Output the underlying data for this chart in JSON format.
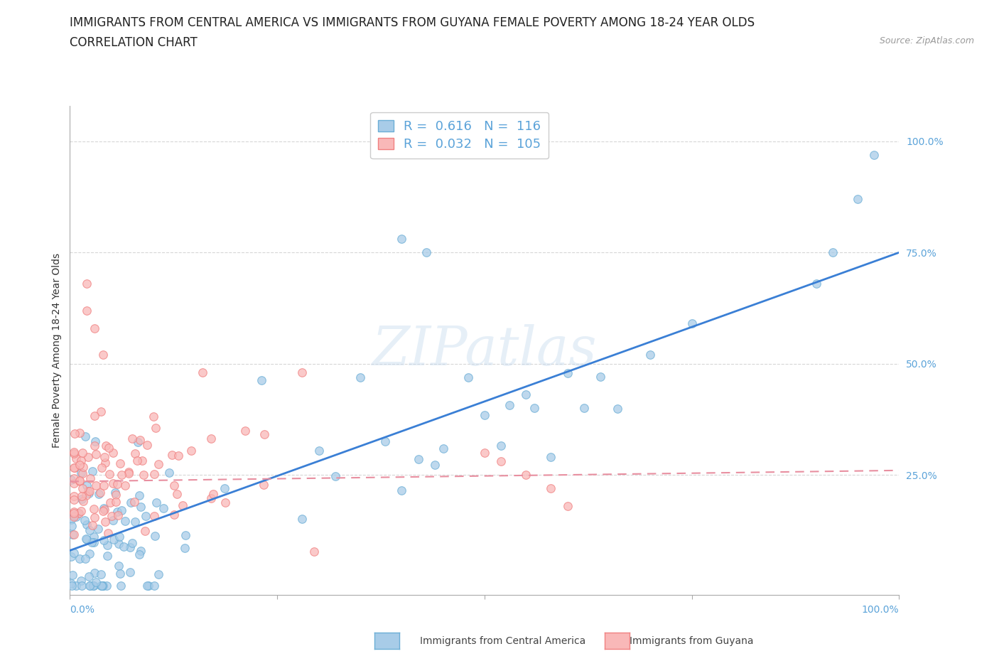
{
  "title_line1": "IMMIGRANTS FROM CENTRAL AMERICA VS IMMIGRANTS FROM GUYANA FEMALE POVERTY AMONG 18-24 YEAR OLDS",
  "title_line2": "CORRELATION CHART",
  "source": "Source: ZipAtlas.com",
  "ylabel": "Female Poverty Among 18-24 Year Olds",
  "series1_color_face": "#a8cce8",
  "series1_color_edge": "#6baed6",
  "series2_color_face": "#f9b8b8",
  "series2_color_edge": "#f08080",
  "series1_label": "Immigrants from Central America",
  "series2_label": "Immigrants from Guyana",
  "R1": "0.616",
  "N1": "116",
  "R2": "0.032",
  "N2": "105",
  "regression1_color": "#3a7fd5",
  "regression2_color": "#e88fa0",
  "tick_color": "#5ba3d9",
  "watermark": "ZIPatlas",
  "background_color": "#ffffff",
  "grid_color": "#cccccc",
  "title_fontsize": 12,
  "axis_label_fontsize": 10,
  "tick_fontsize": 10,
  "legend_fontsize": 13
}
